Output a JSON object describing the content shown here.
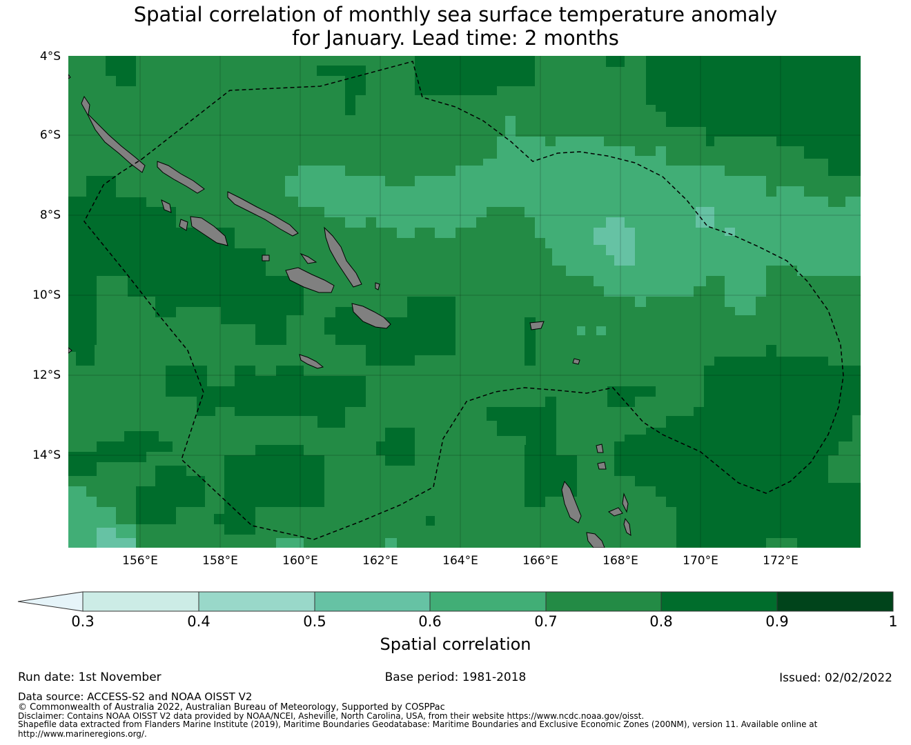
{
  "title": {
    "line1": "Spatial correlation of monthly sea surface temperature anomaly",
    "line2": "for January. Lead time: 2 months"
  },
  "map": {
    "lat_labels": [
      "4°S",
      "6°S",
      "8°S",
      "10°S",
      "12°S",
      "14°S"
    ],
    "lon_labels": [
      "156°E",
      "158°E",
      "160°E",
      "162°E",
      "164°E",
      "166°E",
      "168°E",
      "170°E",
      "172°E"
    ],
    "land_color": "#808080",
    "boundary_style": "dashed",
    "field_classes": [
      "0.4-0.5",
      "0.5-0.6",
      "0.6-0.7",
      "0.7-0.8",
      "0.8-0.9"
    ]
  },
  "colorbar": {
    "label": "Spatial correlation",
    "ticks": [
      "0.3",
      "0.4",
      "0.5",
      "0.6",
      "0.7",
      "0.8",
      "0.9",
      "1"
    ],
    "under_color": "#e6f4f9",
    "colors": [
      "#ccece6",
      "#99d8c9",
      "#66c2a4",
      "#41ae76",
      "#238b45",
      "#006d2c",
      "#00441b"
    ]
  },
  "footer": {
    "run_date": "Run date: 1st November",
    "base_period": "Base period: 1981-2018",
    "issued": "Issued: 02/02/2022",
    "data_source": "Data source: ACCESS-S2 and NOAA OISST V2",
    "copyright": "© Commonwealth of Australia 2022, Australian Bureau of Meteorology, Supported by COSPPac",
    "disclaimer": "Disclaimer: Contains NOAA OISST V2 data provided by NOAA/NCEI, Asheville, North Carolina, USA, from their website https://www.ncdc.noaa.gov/oisst.",
    "shapefile_line1": "Shapefile data extracted from Flanders Marine Institute (2019), Maritime Boundaries Geodatabase: Maritime Boundaries and Exclusive Economic Zones (200NM), version 11. Available online at",
    "shapefile_line2": "http://www.marineregions.org/."
  }
}
